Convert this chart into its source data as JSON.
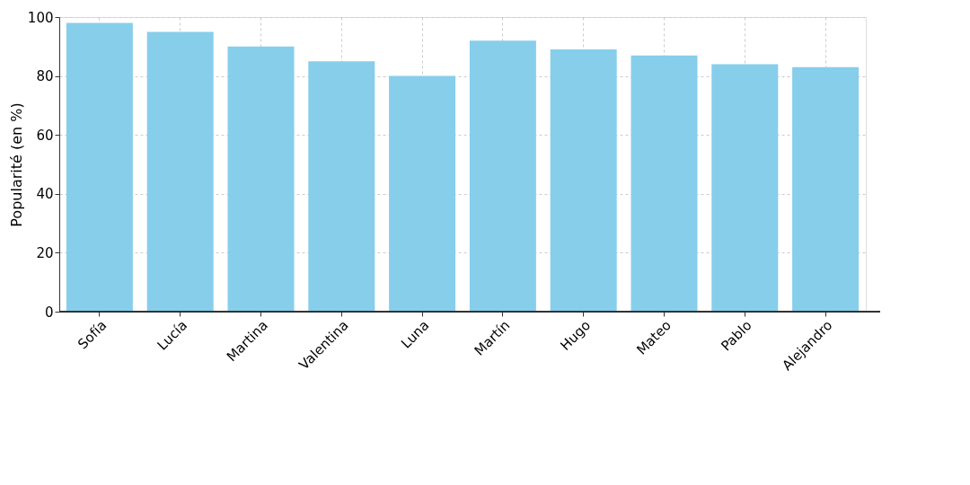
{
  "chart_data": {
    "type": "bar",
    "ylabel": "Popularité (en %)",
    "categories": [
      "Sofía",
      "Lucía",
      "Martina",
      "Valentina",
      "Luna",
      "Martín",
      "Hugo",
      "Mateo",
      "Pablo",
      "Alejandro"
    ],
    "values": [
      98,
      95,
      90,
      85,
      80,
      92,
      89,
      87,
      84,
      83
    ],
    "color": "#87ceeb",
    "ylim": [
      0,
      100
    ],
    "yticks": [
      0,
      20,
      40,
      60,
      80,
      100
    ],
    "grid": true
  }
}
